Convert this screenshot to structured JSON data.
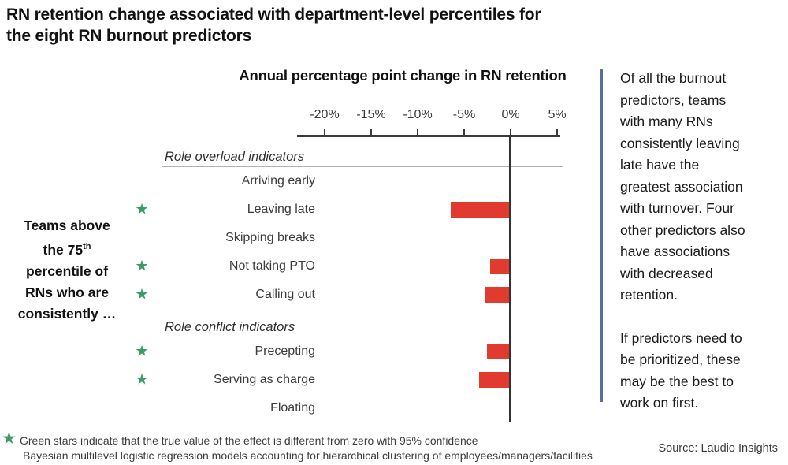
{
  "page": {
    "title_lines": [
      "RN retention change associated with department-level percentiles for",
      "the eight RN burnout predictors"
    ],
    "source": "Source: Laudio Insights"
  },
  "left_label": {
    "lines": [
      {
        "text": "Teams above"
      },
      {
        "text": "the 75",
        "sup": "th"
      },
      {
        "text": "percentile of"
      },
      {
        "text": "RNs who are"
      },
      {
        "text": "consistently …"
      }
    ]
  },
  "chart_data": {
    "type": "bar",
    "orientation": "horizontal",
    "title": "Annual percentage point change in RN retention",
    "xlabel": "Annual percentage point change in RN retention",
    "axis_range": [
      -23,
      5.3
    ],
    "grid": false,
    "x_ticks": [
      {
        "value": -20,
        "label": "-20%"
      },
      {
        "value": -15,
        "label": "-15%"
      },
      {
        "value": -10,
        "label": "-10%"
      },
      {
        "value": -5,
        "label": "-5%"
      },
      {
        "value": 0,
        "label": "0%"
      },
      {
        "value": 5,
        "label": "5%"
      }
    ],
    "rows": [
      {
        "kind": "section",
        "label": "Role overload indicators"
      },
      {
        "kind": "bar",
        "label": "Arriving early",
        "value": 0,
        "star": false
      },
      {
        "kind": "bar",
        "label": "Leaving late",
        "value": -6.4,
        "star": true
      },
      {
        "kind": "bar",
        "label": "Skipping breaks",
        "value": 0,
        "star": false
      },
      {
        "kind": "bar",
        "label": "Not taking PTO",
        "value": -2.2,
        "star": true
      },
      {
        "kind": "bar",
        "label": "Calling out",
        "value": -2.7,
        "star": true
      },
      {
        "kind": "section",
        "label": "Role conflict indicators"
      },
      {
        "kind": "bar",
        "label": "Precepting",
        "value": -2.5,
        "star": true
      },
      {
        "kind": "bar",
        "label": "Serving as charge",
        "value": -3.4,
        "star": true
      },
      {
        "kind": "bar",
        "label": "Floating",
        "value": 0,
        "star": false
      }
    ],
    "colors": {
      "bar": "#e13b30",
      "star": "#3a9e64",
      "axis": "#3a3a3a",
      "section_rule": "#b3b3b3",
      "divider": "#5a6aa2"
    },
    "star_icon": "★"
  },
  "annotation": {
    "para1_lines": [
      "Of all the burnout",
      "predictors, teams",
      "with many RNs",
      "consistently leaving",
      "late have the",
      "greatest association",
      "with turnover. Four",
      "other predictors also",
      "have associations",
      "with decreased",
      "retention."
    ],
    "para2_lines": [
      "If predictors need to",
      "be prioritized, these",
      "may be the best to",
      "work on first."
    ]
  },
  "footnote": {
    "star_icon": "★",
    "line1": "Green stars indicate that the true value of the effect is different from zero with 95% confidence",
    "line2": "Bayesian multilevel logistic regression models accounting for hierarchical clustering of employees/managers/facilities"
  }
}
